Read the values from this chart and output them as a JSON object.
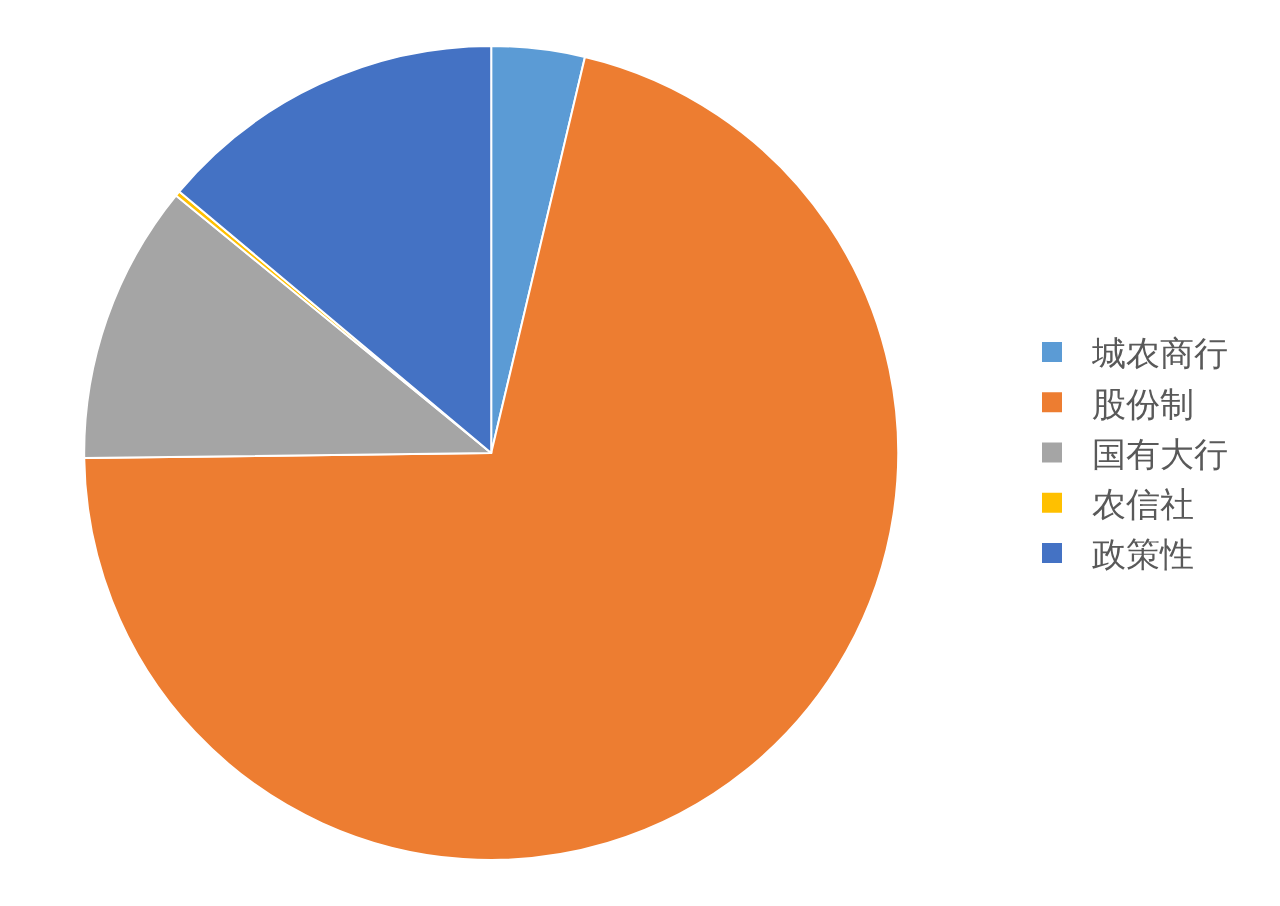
{
  "chart_data": {
    "type": "pie",
    "categories": [
      "城农商行",
      "股份制",
      "国有大行",
      "农信社",
      "政策性"
    ],
    "values": [
      3.7,
      71.1,
      11.1,
      0.2,
      13.9
    ],
    "colors": [
      "#5b9bd5",
      "#ed7d31",
      "#a5a5a5",
      "#ffc000",
      "#4472c4"
    ],
    "legend": "right"
  }
}
